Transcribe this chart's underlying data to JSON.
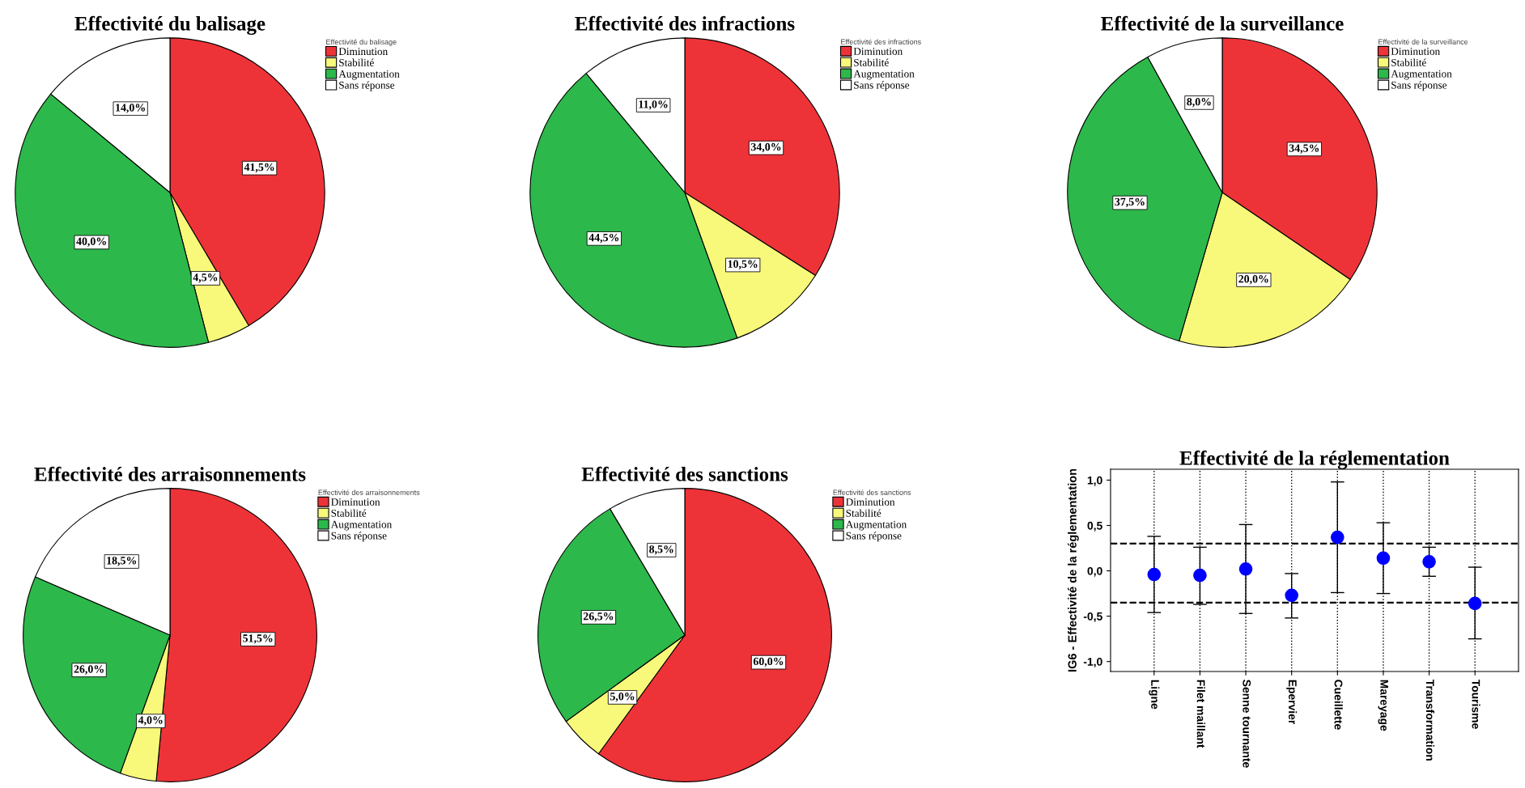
{
  "chart_data": [
    {
      "type": "pie",
      "title": "Effectivité du balisage",
      "legend_title": "Effectivité du balisage",
      "legend": "top right",
      "categories": [
        "Diminution",
        "Stabilité",
        "Augmentation",
        "Sans réponse"
      ],
      "values": [
        41.5,
        4.5,
        40.0,
        14.0
      ],
      "colors": [
        "#ee3338",
        "#f8f87a",
        "#2db84b",
        "#ffffff"
      ],
      "value_labels": [
        "41,5%",
        "4,5%",
        "40,0%",
        "14,0%"
      ]
    },
    {
      "type": "pie",
      "title": "Effectivité des infractions",
      "legend_title": "Effectivité des infractions",
      "legend": "top right",
      "categories": [
        "Diminution",
        "Stabilité",
        "Augmentation",
        "Sans réponse"
      ],
      "values": [
        34.0,
        10.5,
        44.5,
        11.0
      ],
      "colors": [
        "#ee3338",
        "#f8f87a",
        "#2db84b",
        "#ffffff"
      ],
      "value_labels": [
        "34,0%",
        "10,5%",
        "44,5%",
        "11,0%"
      ]
    },
    {
      "type": "pie",
      "title": "Effectivité de la surveillance",
      "legend_title": "Effectivité de la surveillance",
      "legend": "top right",
      "categories": [
        "Diminution",
        "Stabilité",
        "Augmentation",
        "Sans réponse"
      ],
      "values": [
        34.5,
        20.0,
        37.5,
        8.0
      ],
      "colors": [
        "#ee3338",
        "#f8f87a",
        "#2db84b",
        "#ffffff"
      ],
      "value_labels": [
        "34,5%",
        "20,0%",
        "37,5%",
        "8,0%"
      ]
    },
    {
      "type": "pie",
      "title": "Effectivité des arraisonnements",
      "legend_title": "Effectivité des arraisonnements",
      "legend": "top right",
      "categories": [
        "Diminution",
        "Stabilité",
        "Augmentation",
        "Sans réponse"
      ],
      "values": [
        51.5,
        4.0,
        26.0,
        18.5
      ],
      "colors": [
        "#ee3338",
        "#f8f87a",
        "#2db84b",
        "#ffffff"
      ],
      "value_labels": [
        "51,5%",
        "4,0%",
        "26,0%",
        "18,5%"
      ]
    },
    {
      "type": "pie",
      "title": "Effectivité des sanctions",
      "legend_title": "Effectivité des sanctions",
      "legend": "top right",
      "categories": [
        "Diminution",
        "Stabilité",
        "Augmentation",
        "Sans réponse"
      ],
      "values": [
        60.0,
        5.0,
        26.5,
        8.5
      ],
      "colors": [
        "#ee3338",
        "#f8f87a",
        "#2db84b",
        "#ffffff"
      ],
      "value_labels": [
        "60,0%",
        "5,0%",
        "26,5%",
        "8,5%"
      ]
    },
    {
      "type": "scatter",
      "title": "Effectivité de la réglementation",
      "ylabel": "IG6 - Effectivité de la réglementation",
      "categories": [
        "Ligne",
        "Filet maillant",
        "Senne tournante",
        "Epervier",
        "Cueillette",
        "Mareyage",
        "Transformation",
        "Tourisme"
      ],
      "values": [
        -0.04,
        -0.05,
        0.02,
        -0.27,
        0.37,
        0.14,
        0.1,
        -0.36
      ],
      "errors": [
        [
          -0.46,
          0.38
        ],
        [
          -0.37,
          0.26
        ],
        [
          -0.47,
          0.51
        ],
        [
          -0.52,
          -0.03
        ],
        [
          -0.24,
          0.98
        ],
        [
          -0.25,
          0.53
        ],
        [
          -0.06,
          0.26
        ],
        [
          -0.75,
          0.04
        ]
      ],
      "color": "#0000ff",
      "marker": "circle",
      "grid": "x",
      "ylim": [
        -1.11,
        1.12
      ],
      "yticks": [
        {
          "value": -1.0,
          "label": "-1,0"
        },
        {
          "value": -0.5,
          "label": "-0,5"
        },
        {
          "value": 0.0,
          "label": "0,0"
        },
        {
          "value": 0.5,
          "label": "0,5"
        },
        {
          "value": 1.0,
          "label": "1,0"
        }
      ],
      "ref_lines": [
        {
          "axis": "y",
          "value": 0.3,
          "line_style": "dashed",
          "color": "#000000"
        },
        {
          "axis": "y",
          "value": -0.35,
          "line_style": "dashed",
          "color": "#000000"
        }
      ]
    }
  ]
}
